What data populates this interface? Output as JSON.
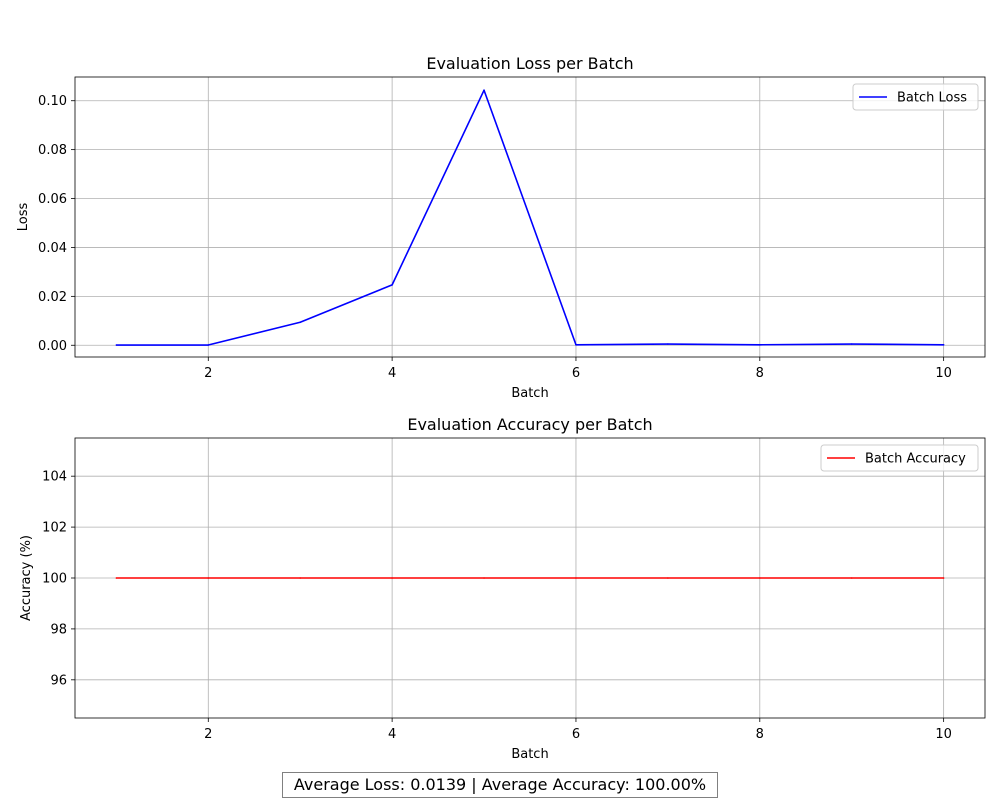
{
  "chart_data": [
    {
      "type": "line",
      "title": "Evaluation Loss per Batch",
      "xlabel": "Batch",
      "ylabel": "Loss",
      "x": [
        1,
        2,
        3,
        4,
        5,
        6,
        7,
        8,
        9,
        10
      ],
      "series": [
        {
          "name": "Batch Loss",
          "color": "#0000ff",
          "values": [
            0.0001,
            0.0001,
            0.0094,
            0.0247,
            0.1043,
            0.0002,
            0.0005,
            0.0002,
            0.0005,
            0.0002
          ]
        }
      ],
      "xlim": [
        0.55,
        10.45
      ],
      "ylim": [
        -0.0048,
        0.1097
      ],
      "xticks": [
        2,
        4,
        6,
        8,
        10
      ],
      "xtick_labels": [
        "2",
        "4",
        "6",
        "8",
        "10"
      ],
      "yticks": [
        0.0,
        0.02,
        0.04,
        0.06,
        0.08,
        0.1
      ],
      "ytick_labels": [
        "0.00",
        "0.02",
        "0.04",
        "0.06",
        "0.08",
        "0.10"
      ],
      "grid": true,
      "legend_position": "upper right"
    },
    {
      "type": "line",
      "title": "Evaluation Accuracy per Batch",
      "xlabel": "Batch",
      "ylabel": "Accuracy (%)",
      "x": [
        1,
        2,
        3,
        4,
        5,
        6,
        7,
        8,
        9,
        10
      ],
      "series": [
        {
          "name": "Batch Accuracy",
          "color": "#ff0000",
          "values": [
            100,
            100,
            100,
            100,
            100,
            100,
            100,
            100,
            100,
            100
          ]
        }
      ],
      "xlim": [
        0.55,
        10.45
      ],
      "ylim": [
        94.5,
        105.5
      ],
      "xticks": [
        2,
        4,
        6,
        8,
        10
      ],
      "xtick_labels": [
        "2",
        "4",
        "6",
        "8",
        "10"
      ],
      "yticks": [
        96,
        98,
        100,
        102,
        104
      ],
      "ytick_labels": [
        "96",
        "98",
        "100",
        "102",
        "104"
      ],
      "grid": true,
      "legend_position": "upper right"
    }
  ],
  "summary": {
    "text": "Average Loss: 0.0139 | Average Accuracy: 100.00%"
  }
}
